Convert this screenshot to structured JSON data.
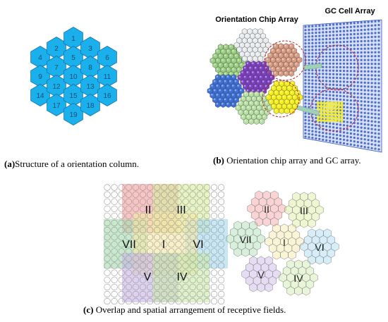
{
  "figure_a": {
    "cells": [
      "1",
      "2",
      "3",
      "4",
      "5",
      "6",
      "7",
      "8",
      "9",
      "10",
      "11",
      "12",
      "13",
      "14",
      "15",
      "16",
      "17",
      "18",
      "19"
    ],
    "caption_label": "(a)",
    "caption_text": "Structure of a orientation column.",
    "colors": {
      "fill": "#1ab0ec",
      "stroke": "#1a6fa8",
      "text": "#1b4d7a"
    }
  },
  "figure_b": {
    "label_chip": "Orientation Chip Array",
    "label_gc": "GC Cell Array",
    "caption_label": "(b)",
    "caption_text": "Orientation chip array and GC array.",
    "colors": {
      "green": "#9ccf84",
      "white": "#e9ecef",
      "salmon": "#d99c82",
      "purple": "#7c3fc2",
      "blue": "#3c6fd8",
      "lightgreen": "#b8e0a4",
      "yellow": "#f4ee1c",
      "gc_grid": "#3558c4",
      "dashed_circle": "#c0202a",
      "connector": "#9fd1b8"
    }
  },
  "figure_c": {
    "left_labels": [
      "II",
      "III",
      "VII",
      "I",
      "VI",
      "V",
      "IV"
    ],
    "right_labels": [
      "II",
      "III",
      "VII",
      "I",
      "VI",
      "V",
      "IV"
    ],
    "caption_label": "(c)",
    "caption_text": "Overlap and spatial arrangement of receptive fields.",
    "colors": {
      "II": "#f4a0a0",
      "III": "#d9ec9c",
      "VII": "#a7dcb0",
      "I": "#f6e6a4",
      "VI": "#a6d8ef",
      "V": "#c8b4e6",
      "IV": "#c9e9a9"
    }
  }
}
